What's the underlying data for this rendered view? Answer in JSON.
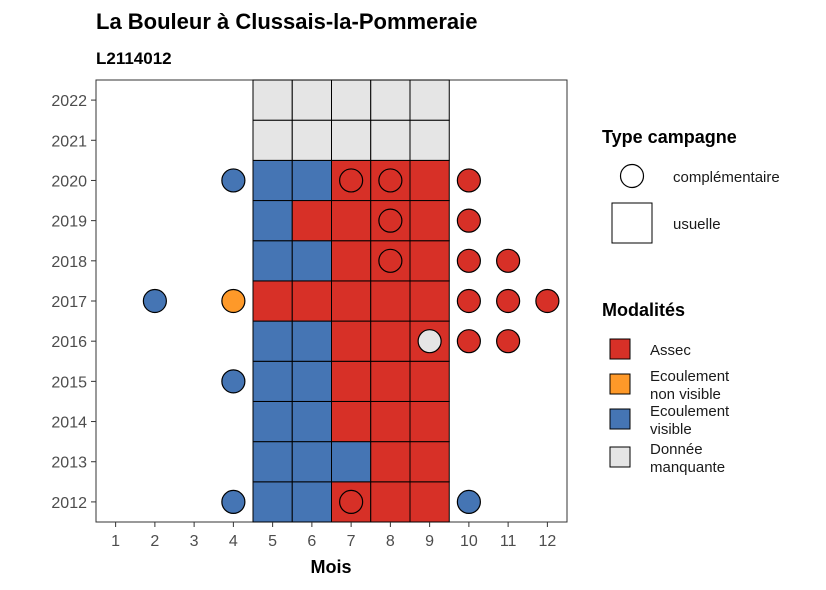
{
  "chart_data": {
    "type": "heatmap",
    "title": "La Bouleur à Clussais-la-Pommeraie",
    "subtitle": "L2114012",
    "xlabel": "Mois",
    "ylabel": "",
    "x_ticks": [
      "1",
      "2",
      "3",
      "4",
      "5",
      "6",
      "7",
      "8",
      "9",
      "10",
      "11",
      "12"
    ],
    "y_ticks": [
      "2012",
      "2013",
      "2014",
      "2015",
      "2016",
      "2017",
      "2018",
      "2019",
      "2020",
      "2021",
      "2022"
    ],
    "xlim": [
      0.5,
      12.5
    ],
    "ylim": [
      2011.5,
      2022.5
    ],
    "grid": false,
    "legend_position": "right",
    "legend_type": {
      "title": "Type campagne",
      "entries": [
        {
          "label": "complémentaire",
          "shape": "circle"
        },
        {
          "label": "usuelle",
          "shape": "square"
        }
      ]
    },
    "legend_modalites": {
      "title": "Modalités",
      "entries": [
        {
          "key": "assec",
          "label_lines": [
            "Assec"
          ],
          "color": "#d73027"
        },
        {
          "key": "ecoulement_non_visible",
          "label_lines": [
            "Ecoulement",
            "non visible"
          ],
          "color": "#fe9929"
        },
        {
          "key": "ecoulement_visible",
          "label_lines": [
            "Ecoulement",
            "visible"
          ],
          "color": "#4575b4"
        },
        {
          "key": "donnee_manquante",
          "label_lines": [
            "Donnée",
            "manquante"
          ],
          "color": "#e5e5e5"
        }
      ]
    },
    "usuelle": [
      {
        "year": 2012,
        "values": {
          "5": "ecoulement_visible",
          "6": "ecoulement_visible",
          "7": "assec",
          "8": "assec",
          "9": "assec"
        }
      },
      {
        "year": 2013,
        "values": {
          "5": "ecoulement_visible",
          "6": "ecoulement_visible",
          "7": "ecoulement_visible",
          "8": "assec",
          "9": "assec"
        }
      },
      {
        "year": 2014,
        "values": {
          "5": "ecoulement_visible",
          "6": "ecoulement_visible",
          "7": "assec",
          "8": "assec",
          "9": "assec"
        }
      },
      {
        "year": 2015,
        "values": {
          "5": "ecoulement_visible",
          "6": "ecoulement_visible",
          "7": "assec",
          "8": "assec",
          "9": "assec"
        }
      },
      {
        "year": 2016,
        "values": {
          "5": "ecoulement_visible",
          "6": "ecoulement_visible",
          "7": "assec",
          "8": "assec",
          "9": "assec"
        }
      },
      {
        "year": 2017,
        "values": {
          "5": "assec",
          "6": "assec",
          "7": "assec",
          "8": "assec",
          "9": "assec"
        }
      },
      {
        "year": 2018,
        "values": {
          "5": "ecoulement_visible",
          "6": "ecoulement_visible",
          "7": "assec",
          "8": "assec",
          "9": "assec"
        }
      },
      {
        "year": 2019,
        "values": {
          "5": "ecoulement_visible",
          "6": "assec",
          "7": "assec",
          "8": "assec",
          "9": "assec"
        }
      },
      {
        "year": 2020,
        "values": {
          "5": "ecoulement_visible",
          "6": "ecoulement_visible",
          "7": "assec",
          "8": "assec",
          "9": "assec"
        }
      },
      {
        "year": 2021,
        "values": {
          "5": "donnee_manquante",
          "6": "donnee_manquante",
          "7": "donnee_manquante",
          "8": "donnee_manquante",
          "9": "donnee_manquante"
        }
      },
      {
        "year": 2022,
        "values": {
          "5": "donnee_manquante",
          "6": "donnee_manquante",
          "7": "donnee_manquante",
          "8": "donnee_manquante",
          "9": "donnee_manquante"
        }
      }
    ],
    "complementaire": [
      {
        "year": 2020,
        "month": 4,
        "value": "ecoulement_visible"
      },
      {
        "year": 2020,
        "month": 7,
        "value": "assec"
      },
      {
        "year": 2020,
        "month": 8,
        "value": "assec"
      },
      {
        "year": 2020,
        "month": 10,
        "value": "assec"
      },
      {
        "year": 2019,
        "month": 8,
        "value": "assec"
      },
      {
        "year": 2019,
        "month": 10,
        "value": "assec"
      },
      {
        "year": 2018,
        "month": 8,
        "value": "assec"
      },
      {
        "year": 2018,
        "month": 10,
        "value": "assec"
      },
      {
        "year": 2018,
        "month": 11,
        "value": "assec"
      },
      {
        "year": 2017,
        "month": 2,
        "value": "ecoulement_visible"
      },
      {
        "year": 2017,
        "month": 4,
        "value": "ecoulement_non_visible"
      },
      {
        "year": 2017,
        "month": 10,
        "value": "assec"
      },
      {
        "year": 2017,
        "month": 11,
        "value": "assec"
      },
      {
        "year": 2017,
        "month": 12,
        "value": "assec"
      },
      {
        "year": 2016,
        "month": 9,
        "value": "donnee_manquante"
      },
      {
        "year": 2016,
        "month": 10,
        "value": "assec"
      },
      {
        "year": 2016,
        "month": 11,
        "value": "assec"
      },
      {
        "year": 2015,
        "month": 4,
        "value": "ecoulement_visible"
      },
      {
        "year": 2012,
        "month": 4,
        "value": "ecoulement_visible"
      },
      {
        "year": 2012,
        "month": 7,
        "value": "assec"
      },
      {
        "year": 2012,
        "month": 10,
        "value": "ecoulement_visible"
      }
    ]
  }
}
